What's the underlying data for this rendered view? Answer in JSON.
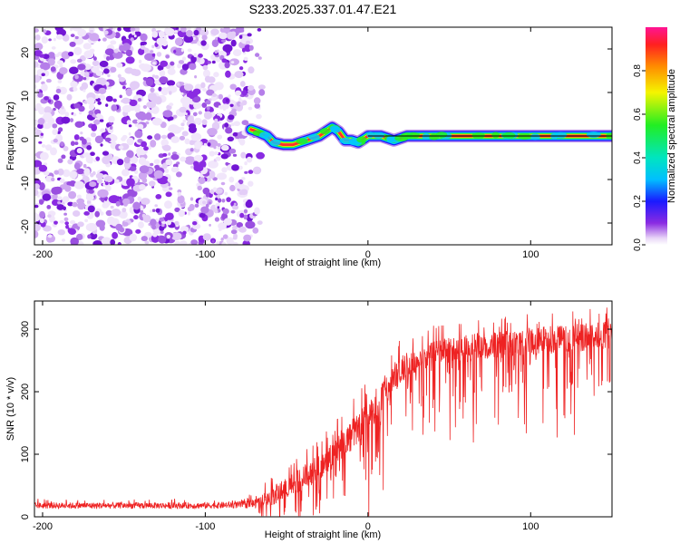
{
  "figure_title": "S233.2025.337.01.47.E21",
  "chart_data": [
    {
      "type": "heatmap",
      "xlabel": "Height of straight line (km)",
      "ylabel": "Frequency (Hz)",
      "xlim": [
        -205,
        150
      ],
      "ylim": [
        -25,
        25
      ],
      "xticks": [
        -200,
        -100,
        0,
        100
      ],
      "xtick_labels": [
        "-200",
        "-100",
        "0",
        "100"
      ],
      "yticks": [
        20,
        10,
        0,
        -10,
        -20
      ],
      "ytick_labels": [
        "20",
        "10",
        "0",
        "-10",
        "-20"
      ],
      "noise_region_km": [
        -205,
        -72
      ],
      "reference_line_hz": 0,
      "ridge": {
        "x_km": [
          -72,
          -68,
          -62,
          -58,
          -52,
          -46,
          -42,
          -38,
          -34,
          -30,
          -26,
          -22,
          -18,
          -14,
          -10,
          -6,
          -2,
          0,
          4,
          8,
          12,
          16,
          20,
          24,
          30,
          60,
          100,
          150
        ],
        "y_hz": [
          1.5,
          1,
          0,
          -1.5,
          -2,
          -2,
          -1.5,
          -1,
          -0.5,
          0,
          1,
          2,
          1,
          -1,
          -1,
          -1.5,
          -0.5,
          0,
          0,
          0,
          -0.5,
          -1,
          -0.5,
          0,
          0,
          0,
          0,
          0
        ]
      },
      "colorbar": {
        "label": "Normalized spectral amplitude",
        "range": [
          0,
          1
        ],
        "ticks": [
          0.0,
          0.2,
          0.4,
          0.6,
          0.8
        ],
        "tick_labels": [
          "0.0",
          "0.2",
          "0.4",
          "0.6",
          "0.8"
        ]
      }
    },
    {
      "type": "line",
      "xlabel": "Height of straight line (km)",
      "ylabel": "SNR (10 * v/v)",
      "xlim": [
        -205,
        150
      ],
      "ylim": [
        0,
        345
      ],
      "xticks": [
        -200,
        -100,
        0,
        100
      ],
      "xtick_labels": [
        "-200",
        "-100",
        "0",
        "100"
      ],
      "yticks": [
        0,
        100,
        200,
        300
      ],
      "ytick_labels": [
        "0",
        "100",
        "200",
        "300"
      ],
      "series": [
        {
          "name": "SNR",
          "color": "#ee2222",
          "envelope_x_km": [
            -205,
            -150,
            -100,
            -80,
            -70,
            -65,
            -60,
            -50,
            -40,
            -30,
            -20,
            -10,
            0,
            10,
            20,
            30,
            40,
            60,
            80,
            100,
            120,
            150
          ],
          "envelope_mid": [
            18,
            18,
            18,
            19,
            21,
            25,
            32,
            45,
            62,
            80,
            105,
            130,
            160,
            200,
            235,
            250,
            262,
            270,
            275,
            280,
            285,
            290
          ],
          "envelope_spread": [
            10,
            10,
            10,
            11,
            15,
            22,
            30,
            35,
            40,
            45,
            50,
            52,
            55,
            55,
            45,
            40,
            40,
            45,
            45,
            45,
            45,
            45
          ]
        }
      ]
    }
  ],
  "colors": {
    "line_red": "#ee2222",
    "noise_purple": "#8a2be2",
    "frame": "#000000"
  }
}
